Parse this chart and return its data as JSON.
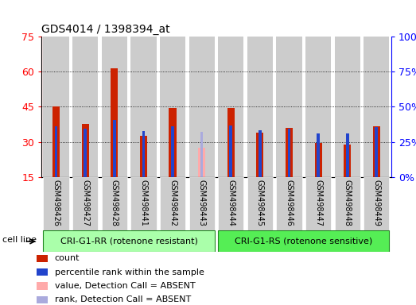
{
  "title": "GDS4014 / 1398394_at",
  "samples": [
    "GSM498426",
    "GSM498427",
    "GSM498428",
    "GSM498441",
    "GSM498442",
    "GSM498443",
    "GSM498444",
    "GSM498445",
    "GSM498446",
    "GSM498447",
    "GSM498448",
    "GSM498449"
  ],
  "count_values": [
    45.0,
    37.5,
    61.5,
    32.5,
    44.5,
    null,
    44.5,
    34.0,
    36.0,
    29.5,
    29.0,
    36.5
  ],
  "rank_values": [
    36.0,
    34.5,
    40.5,
    32.5,
    36.0,
    null,
    36.5,
    33.0,
    34.5,
    31.0,
    31.0,
    35.5
  ],
  "absent_count": [
    null,
    null,
    null,
    null,
    null,
    27.5,
    null,
    null,
    null,
    null,
    null,
    null
  ],
  "absent_rank": [
    null,
    null,
    null,
    null,
    null,
    32.0,
    null,
    null,
    null,
    null,
    null,
    null
  ],
  "count_color": "#cc2200",
  "rank_color": "#2244cc",
  "absent_count_color": "#ffaaaa",
  "absent_rank_color": "#aaaadd",
  "ylim_left": [
    15,
    75
  ],
  "ylim_right": [
    0,
    100
  ],
  "yticks_left": [
    15,
    30,
    45,
    60,
    75
  ],
  "yticks_right": [
    0,
    25,
    50,
    75,
    100
  ],
  "group1_label": "CRI-G1-RR (rotenone resistant)",
  "group2_label": "CRI-G1-RS (rotenone sensitive)",
  "group1_indices": [
    0,
    1,
    2,
    3,
    4,
    5
  ],
  "group2_indices": [
    6,
    7,
    8,
    9,
    10,
    11
  ],
  "cell_line_label": "cell line",
  "group1_color": "#aaffaa",
  "group2_color": "#55ee55",
  "bar_bg_color": "#cccccc",
  "count_bar_width": 0.25,
  "rank_bar_width": 0.1,
  "legend_items": [
    {
      "label": "count",
      "color": "#cc2200"
    },
    {
      "label": "percentile rank within the sample",
      "color": "#2244cc"
    },
    {
      "label": "value, Detection Call = ABSENT",
      "color": "#ffaaaa"
    },
    {
      "label": "rank, Detection Call = ABSENT",
      "color": "#aaaadd"
    }
  ]
}
